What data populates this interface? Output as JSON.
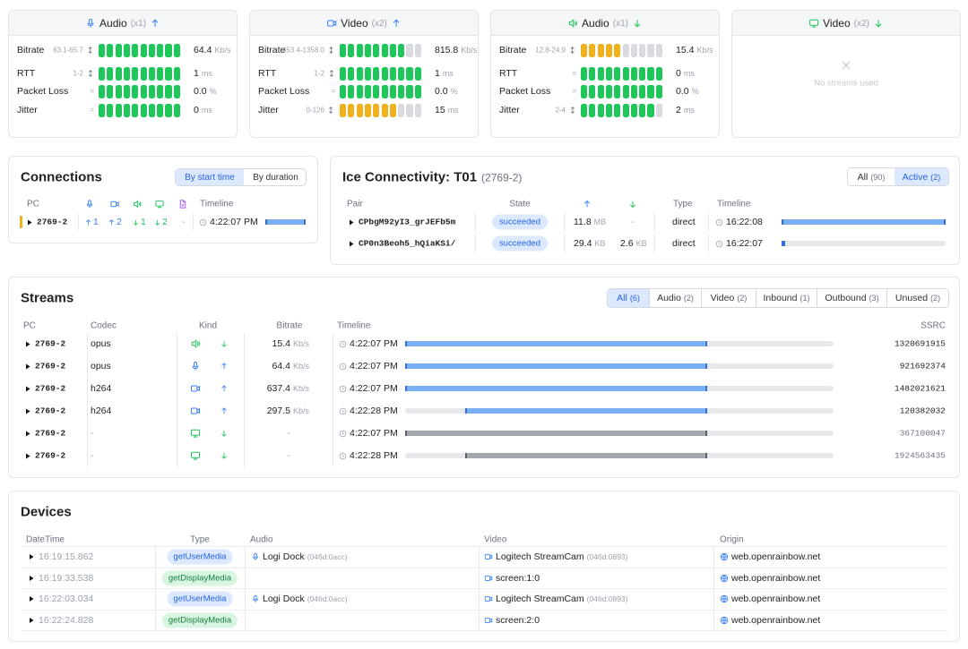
{
  "meter_segments": 10,
  "meters": [
    {
      "icon": "mic",
      "dir": "up",
      "title": "Audio",
      "count": "(x1)",
      "rows": [
        {
          "label": "Bitrate",
          "range": "63.1-65.7",
          "on": 10,
          "color": "#1fc65a",
          "value": "64.4",
          "unit": "Kb/s"
        },
        {
          "label": "RTT",
          "range": "1-2",
          "on": 10,
          "color": "#1fc65a",
          "value": "1",
          "unit": "ms"
        },
        {
          "label": "Packet Loss",
          "range": "=",
          "on": 10,
          "color": "#1fc65a",
          "value": "0.0",
          "unit": "%"
        },
        {
          "label": "Jitter",
          "range": "=",
          "on": 10,
          "color": "#1fc65a",
          "value": "0",
          "unit": "ms"
        }
      ]
    },
    {
      "icon": "cam",
      "dir": "up",
      "title": "Video",
      "count": "(x2)",
      "rows": [
        {
          "label": "Bitrate",
          "range": "453.4-1358.0",
          "on": 8,
          "color": "#1fc65a",
          "value": "815.8",
          "unit": "Kb/s"
        },
        {
          "label": "RTT",
          "range": "1-2",
          "on": 10,
          "color": "#1fc65a",
          "value": "1",
          "unit": "ms"
        },
        {
          "label": "Packet Loss",
          "range": "=",
          "on": 10,
          "color": "#1fc65a",
          "value": "0.0",
          "unit": "%"
        },
        {
          "label": "Jitter",
          "range": "0-126",
          "on": 7,
          "color": "#f0b21c",
          "value": "15",
          "unit": "ms"
        }
      ]
    },
    {
      "icon": "speaker",
      "dir": "down",
      "title": "Audio",
      "count": "(x1)",
      "rows": [
        {
          "label": "Bitrate",
          "range": "12.8-24.9",
          "on": 5,
          "color": "#f0b21c",
          "value": "15.4",
          "unit": "Kb/s"
        },
        {
          "label": "RTT",
          "range": "=",
          "on": 10,
          "color": "#1fc65a",
          "value": "0",
          "unit": "ms"
        },
        {
          "label": "Packet Loss",
          "range": "=",
          "on": 10,
          "color": "#1fc65a",
          "value": "0.0",
          "unit": "%"
        },
        {
          "label": "Jitter",
          "range": "2-4",
          "on": 9,
          "color": "#1fc65a",
          "value": "2",
          "unit": "ms"
        }
      ]
    },
    {
      "icon": "monitor",
      "dir": "down",
      "title": "Video",
      "count": "(x2)",
      "empty": "No streams used"
    }
  ],
  "connections": {
    "title": "Connections",
    "sort": [
      "By start time",
      "By duration"
    ],
    "headers": {
      "pc": "PC",
      "timeline": "Timeline"
    },
    "rows": [
      {
        "pc": "2769-2",
        "counts": [
          {
            "dir": "up",
            "value": 1
          },
          {
            "dir": "up",
            "value": 2
          },
          {
            "dir": "down",
            "value": 1
          },
          {
            "dir": "down",
            "value": 2
          }
        ],
        "file": "-",
        "time": "4:22:07 PM"
      }
    ]
  },
  "ice": {
    "title": "Ice Connectivity: T01",
    "subtitle": "(2769-2)",
    "filters": [
      {
        "label": "All",
        "count": "(90)"
      },
      {
        "label": "Active",
        "count": "(2)"
      }
    ],
    "headers": {
      "pair": "Pair",
      "state": "State",
      "type": "Type",
      "timeline": "Timeline"
    },
    "rows": [
      {
        "pair": "CPbgM92yI3_grJEFb5m",
        "state": "succeeded",
        "sent": "11.8",
        "sent_unit": "MB",
        "received": "-",
        "type": "direct",
        "time": "16:22:08"
      },
      {
        "pair": "CP0n3Beoh5_hQiaKSi/",
        "state": "succeeded",
        "sent": "29.4",
        "sent_unit": "KB",
        "received": "2.6",
        "received_unit": "KB",
        "type": "direct",
        "time": "16:22:07"
      }
    ]
  },
  "streams": {
    "title": "Streams",
    "tabs": [
      {
        "label": "All",
        "count": "(6)"
      },
      {
        "label": "Audio",
        "count": "(2)"
      },
      {
        "label": "Video",
        "count": "(2)"
      },
      {
        "label": "Inbound",
        "count": "(1)"
      },
      {
        "label": "Outbound",
        "count": "(3)"
      },
      {
        "label": "Unused",
        "count": "(2)"
      }
    ],
    "headers": {
      "pc": "PC",
      "codec": "Codec",
      "kind": "Kind",
      "bitrate": "Bitrate",
      "timeline": "Timeline",
      "ssrc": "SSRC"
    },
    "rows": [
      {
        "pc": "2769-2",
        "codec": "opus",
        "icon": "speaker",
        "dir": "down",
        "bitrate": "15.4",
        "unit": "Kb/s",
        "time": "4:22:07 PM",
        "ssrc": "1320691915"
      },
      {
        "pc": "2769-2",
        "codec": "opus",
        "icon": "mic",
        "dir": "up",
        "bitrate": "64.4",
        "unit": "Kb/s",
        "time": "4:22:07 PM",
        "ssrc": "921692374"
      },
      {
        "pc": "2769-2",
        "codec": "h264",
        "icon": "cam",
        "dir": "up",
        "bitrate": "637.4",
        "unit": "Kb/s",
        "time": "4:22:07 PM",
        "ssrc": "1482021621"
      },
      {
        "pc": "2769-2",
        "codec": "h264",
        "icon": "cam",
        "dir": "up",
        "bitrate": "297.5",
        "unit": "Kb/s",
        "time": "4:22:28 PM",
        "ssrc": "120382032"
      },
      {
        "pc": "2769-2",
        "codec": "-",
        "icon": "monitor",
        "dir": "down",
        "bitrate": "-",
        "time": "4:22:07 PM",
        "ssrc": "367100047"
      },
      {
        "pc": "2769-2",
        "codec": "-",
        "icon": "monitor",
        "dir": "down",
        "bitrate": "-",
        "time": "4:22:28 PM",
        "ssrc": "1924563435"
      }
    ]
  },
  "devices": {
    "title": "Devices",
    "headers": {
      "datetime": "DateTime",
      "type": "Type",
      "audio": "Audio",
      "video": "Video",
      "origin": "Origin"
    },
    "rows": [
      {
        "datetime": "16:19:15.862",
        "type": "getUserMedia",
        "audio": "Logi Dock",
        "audio_id": "(046d:0acc)",
        "video": "Logitech StreamCam",
        "video_id": "(046d:0893)",
        "origin": "web.openrainbow.net"
      },
      {
        "datetime": "16:19:33.538",
        "type": "getDisplayMedia",
        "audio": null,
        "video": "screen:1:0",
        "origin": "web.openrainbow.net"
      },
      {
        "datetime": "16:22:03.034",
        "type": "getUserMedia",
        "audio": "Logi Dock",
        "audio_id": "(046d:0acc)",
        "video": "Logitech StreamCam",
        "video_id": "(046d:0893)",
        "origin": "web.openrainbow.net"
      },
      {
        "datetime": "16:22:24.828",
        "type": "getDisplayMedia",
        "audio": null,
        "video": "screen:2:0",
        "origin": "web.openrainbow.net"
      }
    ]
  }
}
